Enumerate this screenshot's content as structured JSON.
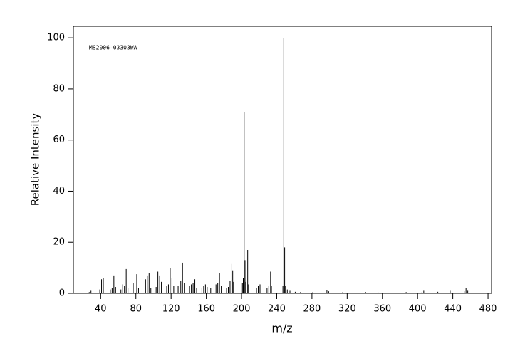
{
  "chart_data": {
    "type": "spectrum",
    "annotation": "MS2006-03303WA",
    "x_label": "m/z",
    "y_label": "Relative Intensity",
    "color": "#000000",
    "x": [
      27,
      29,
      39,
      41,
      43,
      51,
      53,
      55,
      57,
      63,
      65,
      67,
      69,
      71,
      77,
      79,
      81,
      83,
      91,
      93,
      95,
      97,
      103,
      105,
      107,
      109,
      115,
      117,
      119,
      121,
      123,
      128,
      131,
      133,
      135,
      141,
      143,
      145,
      147,
      149,
      155,
      157,
      159,
      161,
      165,
      171,
      173,
      175,
      177,
      183,
      185,
      187,
      189,
      190,
      191,
      201,
      202,
      203,
      204,
      205,
      207,
      208,
      217,
      219,
      221,
      229,
      231,
      233,
      234,
      247,
      248,
      249,
      250,
      252,
      255,
      261,
      267,
      281,
      297,
      299,
      315,
      341,
      355,
      387,
      405,
      407,
      423,
      437,
      453,
      455,
      457
    ],
    "values": [
      0.5,
      1,
      1.5,
      5.5,
      6,
      1.5,
      2,
      7,
      2.5,
      1.5,
      3.5,
      3,
      9.5,
      2,
      4,
      3,
      7.5,
      2,
      5.5,
      7,
      8,
      2,
      2.5,
      8.5,
      7,
      4.5,
      3,
      3.5,
      10,
      6,
      3,
      3,
      5,
      12,
      4,
      3,
      3.5,
      4,
      5.5,
      2,
      2,
      3,
      3.5,
      2.5,
      2,
      3.5,
      4,
      8,
      3,
      2,
      2.5,
      5,
      11.5,
      9,
      4.5,
      4,
      6,
      71,
      13,
      4.5,
      17,
      3.5,
      2,
      3,
      3.5,
      2,
      3,
      8.5,
      3,
      3,
      100,
      18,
      3,
      1.5,
      1,
      0.6,
      0.5,
      0.5,
      1.2,
      0.8,
      0.5,
      0.5,
      0.4,
      0.5,
      0.5,
      1,
      0.6,
      1,
      0.8,
      2,
      1
    ],
    "xlim": [
      9,
      484
    ],
    "ylim": [
      0,
      104.5
    ],
    "xticks": [
      40,
      80,
      120,
      160,
      200,
      240,
      280,
      320,
      360,
      400,
      440,
      480
    ],
    "yticks": [
      0,
      20,
      40,
      60,
      80,
      100
    ]
  }
}
